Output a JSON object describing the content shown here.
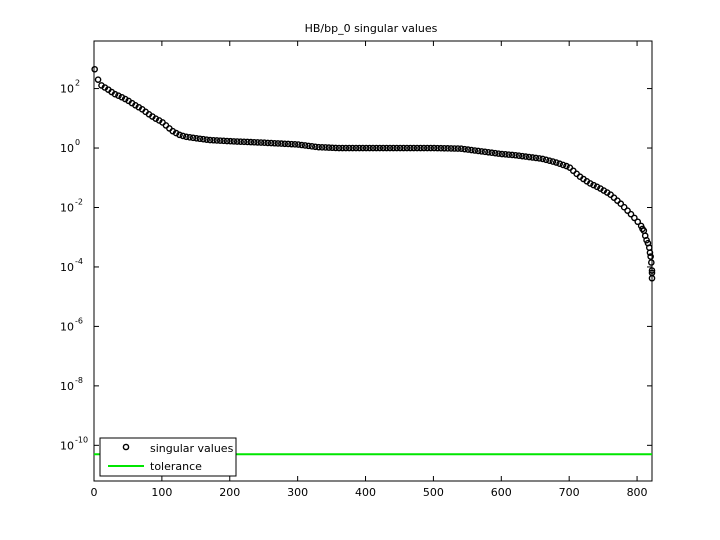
{
  "chart_data": {
    "type": "scatter",
    "title": "HB/bp_0 singular values",
    "xlabel": "",
    "ylabel": "",
    "xlim": [
      0,
      822
    ],
    "ylim_log10": [
      -11.2,
      3.6
    ],
    "yscale": "log",
    "grid": false,
    "legend_placement": "bottom-left",
    "x_ticks": [
      {
        "value": 0,
        "label": "0"
      },
      {
        "value": 100,
        "label": "100"
      },
      {
        "value": 200,
        "label": "200"
      },
      {
        "value": 300,
        "label": "300"
      },
      {
        "value": 400,
        "label": "400"
      },
      {
        "value": 500,
        "label": "500"
      },
      {
        "value": 600,
        "label": "600"
      },
      {
        "value": 700,
        "label": "700"
      },
      {
        "value": 800,
        "label": "800"
      }
    ],
    "y_ticks": [
      {
        "exp": 2,
        "base": "10",
        "sup": "2"
      },
      {
        "exp": 0,
        "base": "10",
        "sup": "0"
      },
      {
        "exp": -2,
        "base": "10",
        "sup": "-2"
      },
      {
        "exp": -4,
        "base": "10",
        "sup": "-4"
      },
      {
        "exp": -6,
        "base": "10",
        "sup": "-6"
      },
      {
        "exp": -8,
        "base": "10",
        "sup": "-8"
      },
      {
        "exp": -10,
        "base": "10",
        "sup": "-10"
      }
    ],
    "series": [
      {
        "name": "singular values",
        "marker": "circle",
        "color": "#000000",
        "curve_log10": [
          [
            1,
            2.65
          ],
          [
            3,
            2.45
          ],
          [
            6,
            2.3
          ],
          [
            10,
            2.12
          ],
          [
            20,
            1.98
          ],
          [
            30,
            1.82
          ],
          [
            40,
            1.72
          ],
          [
            50,
            1.6
          ],
          [
            60,
            1.45
          ],
          [
            70,
            1.32
          ],
          [
            80,
            1.15
          ],
          [
            90,
            1.0
          ],
          [
            100,
            0.88
          ],
          [
            108,
            0.72
          ],
          [
            115,
            0.58
          ],
          [
            125,
            0.45
          ],
          [
            135,
            0.38
          ],
          [
            150,
            0.33
          ],
          [
            170,
            0.27
          ],
          [
            200,
            0.23
          ],
          [
            250,
            0.18
          ],
          [
            300,
            0.12
          ],
          [
            330,
            0.03
          ],
          [
            360,
            0.0
          ],
          [
            400,
            0.0
          ],
          [
            450,
            0.0
          ],
          [
            500,
            0.0
          ],
          [
            540,
            -0.02
          ],
          [
            560,
            -0.08
          ],
          [
            580,
            -0.14
          ],
          [
            600,
            -0.2
          ],
          [
            620,
            -0.24
          ],
          [
            640,
            -0.3
          ],
          [
            660,
            -0.36
          ],
          [
            680,
            -0.48
          ],
          [
            700,
            -0.64
          ],
          [
            715,
            -0.95
          ],
          [
            730,
            -1.18
          ],
          [
            745,
            -1.35
          ],
          [
            760,
            -1.55
          ],
          [
            775,
            -1.85
          ],
          [
            790,
            -2.2
          ],
          [
            800,
            -2.45
          ],
          [
            805,
            -2.6
          ]
        ],
        "tail_points_log10": [
          [
            806,
            -2.62
          ],
          [
            808,
            -2.72
          ],
          [
            810,
            -2.78
          ],
          [
            812,
            -2.95
          ],
          [
            814,
            -3.1
          ],
          [
            816,
            -3.2
          ],
          [
            818,
            -3.35
          ],
          [
            819,
            -3.52
          ],
          [
            820,
            -3.65
          ],
          [
            821,
            -3.85
          ],
          [
            822,
            -4.12
          ],
          [
            822,
            -4.2
          ],
          [
            822,
            -4.38
          ]
        ],
        "spacing": 5
      },
      {
        "name": "tolerance",
        "color": "#00e600",
        "value": 5e-11
      }
    ]
  }
}
